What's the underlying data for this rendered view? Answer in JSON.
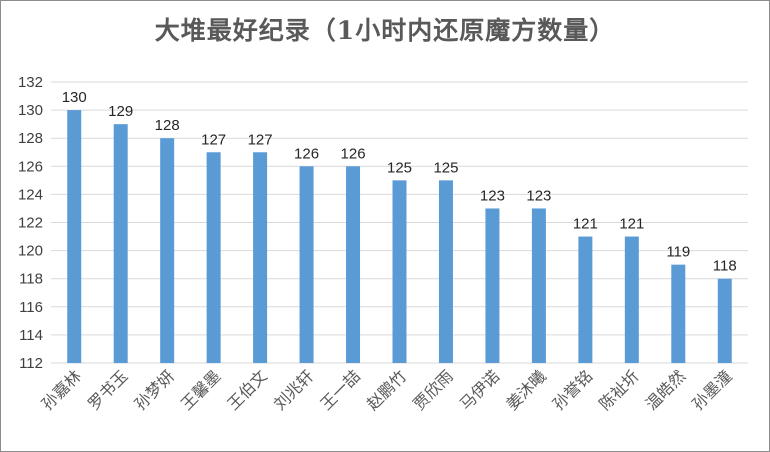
{
  "chart_data": {
    "type": "bar",
    "title": "大堆最好纪录（1小时内还原魔方数量）",
    "categories": [
      "孙嘉林",
      "罗书玉",
      "孙梦妍",
      "王馨墨",
      "王伯文",
      "刘兆轩",
      "王一喆",
      "赵鹏竹",
      "贾欣雨",
      "马伊诺",
      "姜沐曦",
      "孙誉铭",
      "陈祉圻",
      "温皓然",
      "孙墨潼"
    ],
    "values": [
      130,
      129,
      128,
      127,
      127,
      126,
      126,
      125,
      125,
      123,
      123,
      121,
      121,
      119,
      118
    ],
    "ylim": [
      112,
      132
    ],
    "yticks": [
      112,
      114,
      116,
      118,
      120,
      122,
      124,
      126,
      128,
      130,
      132
    ],
    "grid": true,
    "legend": false,
    "bar_color": "#5b9bd5",
    "gridline_color": "#d9d9d9"
  }
}
